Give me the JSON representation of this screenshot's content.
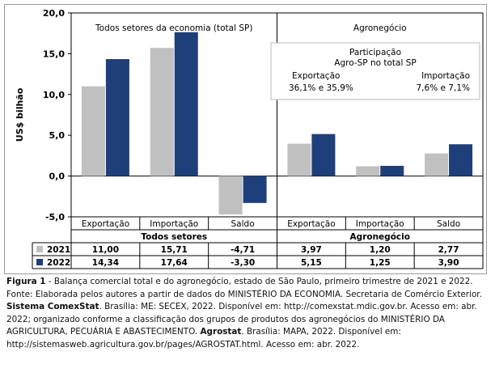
{
  "chart_data": {
    "type": "bar",
    "ylabel": "US$ bilhão",
    "ylim": [
      -5,
      20
    ],
    "yticks": [
      "20,0",
      "15,0",
      "10,0",
      "5,0",
      "0,0",
      "-5,0"
    ],
    "ytick_values": [
      20,
      15,
      10,
      5,
      0,
      -5
    ],
    "categories": [
      "Exportação",
      "Importação",
      "Saldo",
      "Exportação",
      "Importação",
      "Saldo"
    ],
    "groups": [
      {
        "label": "Todos setores",
        "panel_title": "Todos setores da economia (total SP)"
      },
      {
        "label": "Agronegócio",
        "panel_title": "Agronegócio"
      }
    ],
    "series": [
      {
        "name": "2021",
        "color": "#c0c0c0",
        "values": [
          11.0,
          15.71,
          -4.71,
          3.97,
          1.2,
          2.77
        ],
        "labels": [
          "11,00",
          "15,71",
          "-4,71",
          "3,97",
          "1,20",
          "2,77"
        ]
      },
      {
        "name": "2022",
        "color": "#1f3f7a",
        "values": [
          14.34,
          17.64,
          -3.3,
          5.15,
          1.25,
          3.9
        ],
        "labels": [
          "14,34",
          "17,64",
          "-3,30",
          "5,15",
          "1,25",
          "3,90"
        ]
      }
    ],
    "annotation": {
      "title_line1": "Participação",
      "title_line2": "Agro-SP no total SP",
      "export_label": "Exportação",
      "export_value": "36,1% e 35,9%",
      "import_label": "Importação",
      "import_value": "7,6% e 7,1%"
    },
    "grid": false,
    "legend": "table"
  },
  "caption": {
    "fig_label": "Figura 1",
    "fig_text": " - Balança comercial total e do agronegócio, estado de São Paulo, primeiro trimestre de 2021 e 2022.",
    "p1": "Fonte: Elaborada pelos autores a partir de dados do MINISTÉRIO DA ECONOMIA. Secretaria de Comércio Exterior. ",
    "b1": "Sistema ComexStat",
    "p2": ". Brasília: ME: SECEX, 2022. Disponível em: http://comexstat.mdic.gov.br. Acesso em: abr. 2022; organizado conforme a classificação dos grupos de produtos dos agronegócios do MINISTÉRIO DA AGRICULTURA, PECUÁRIA E ABASTECIMENTO. ",
    "b2": "Agrostat",
    "p3": ". Brasília: MAPA, 2022. Disponível em: http://sistemasweb.agricultura.gov.br/pages/AGROSTAT.html. Acesso em: abr. 2022."
  }
}
